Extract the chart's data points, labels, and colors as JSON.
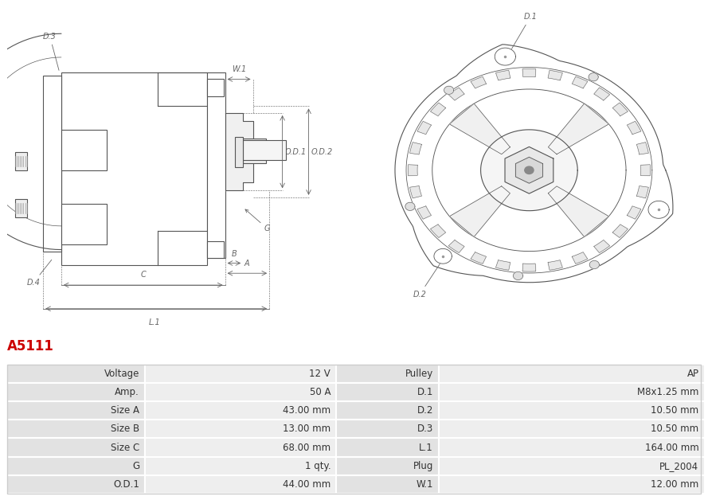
{
  "title": "A5111",
  "title_color": "#cc0000",
  "bg_color": "#ffffff",
  "lc": "#555555",
  "lw": 0.8,
  "dim_lc": "#666666",
  "rows": [
    [
      "Voltage",
      "12 V",
      "Pulley",
      "AP"
    ],
    [
      "Amp.",
      "50 A",
      "D.1",
      "M8x1.25 mm"
    ],
    [
      "Size A",
      "43.00 mm",
      "D.2",
      "10.50 mm"
    ],
    [
      "Size B",
      "13.00 mm",
      "D.3",
      "10.50 mm"
    ],
    [
      "Size C",
      "68.00 mm",
      "L.1",
      "164.00 mm"
    ],
    [
      "G",
      "1 qty.",
      "Plug",
      "PL_2004"
    ],
    [
      "O.D.1",
      "44.00 mm",
      "W.1",
      "12.00 mm"
    ]
  ],
  "font_size_title": 12,
  "font_size_table": 8.5,
  "font_size_label": 7
}
